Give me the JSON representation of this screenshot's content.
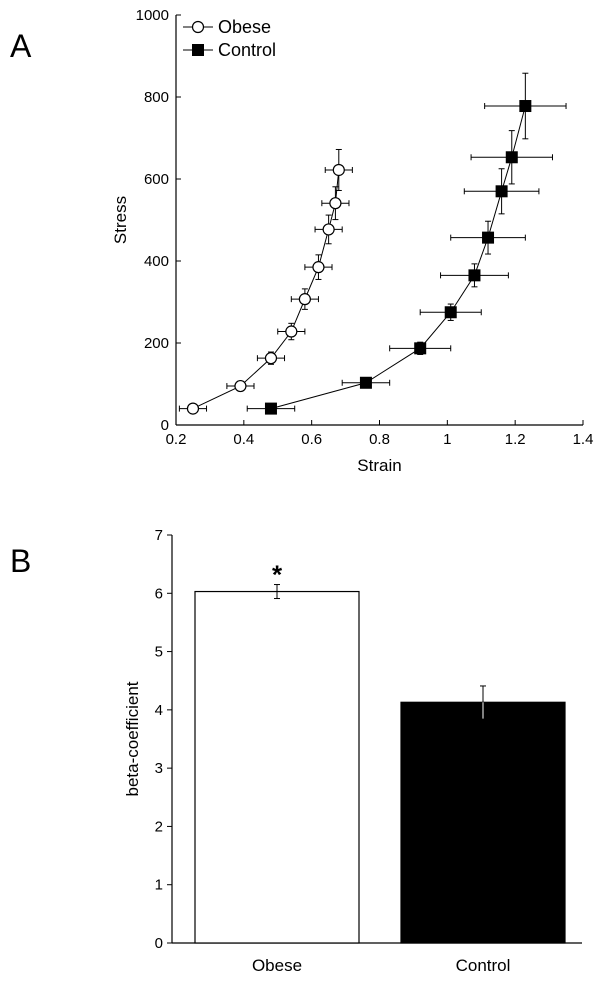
{
  "chart_data": [
    {
      "panel_label": "A",
      "type": "scatter",
      "xlabel": "Strain",
      "ylabel": "Stress",
      "xlim": [
        0.2,
        1.4
      ],
      "ylim": [
        0,
        1000
      ],
      "xticks": [
        "0.2",
        "0.4",
        "0.6",
        "0.8",
        "1",
        "1.2",
        "1.4"
      ],
      "yticks": [
        "0",
        "200",
        "400",
        "600",
        "800",
        "1000"
      ],
      "legend_position": "top-left",
      "series": [
        {
          "name": "Obese",
          "marker": "open-circle",
          "x": [
            0.25,
            0.39,
            0.48,
            0.54,
            0.58,
            0.62,
            0.65,
            0.67,
            0.68
          ],
          "y": [
            40,
            95,
            163,
            228,
            307,
            385,
            477,
            541,
            622
          ],
          "x_err": [
            0.04,
            0.04,
            0.04,
            0.04,
            0.04,
            0.04,
            0.04,
            0.04,
            0.04
          ],
          "y_err": [
            10,
            12,
            15,
            20,
            25,
            30,
            35,
            40,
            50
          ]
        },
        {
          "name": "Control",
          "marker": "filled-square",
          "x": [
            0.48,
            0.76,
            0.92,
            1.01,
            1.08,
            1.12,
            1.16,
            1.19,
            1.23
          ],
          "y": [
            40,
            103,
            187,
            275,
            365,
            457,
            570,
            653,
            778
          ],
          "x_err": [
            0.07,
            0.07,
            0.09,
            0.09,
            0.1,
            0.11,
            0.11,
            0.12,
            0.12
          ],
          "y_err": [
            8,
            12,
            15,
            20,
            28,
            40,
            55,
            65,
            80
          ]
        }
      ]
    },
    {
      "panel_label": "B",
      "type": "bar",
      "xlabel": "",
      "ylabel": "beta-coefficient",
      "ylim": [
        0,
        7
      ],
      "yticks": [
        "0",
        "1",
        "2",
        "3",
        "4",
        "5",
        "6",
        "7"
      ],
      "categories": [
        "Obese",
        "Control"
      ],
      "values": [
        6.03,
        4.13
      ],
      "errors": [
        0.12,
        0.28
      ],
      "fills": [
        "#ffffff",
        "#000000"
      ],
      "annotations": [
        "*",
        ""
      ]
    }
  ]
}
